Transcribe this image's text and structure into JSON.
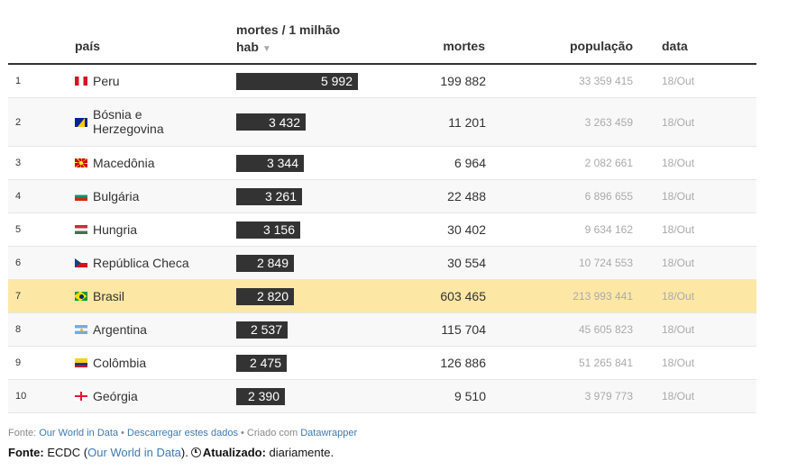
{
  "headers": {
    "country": "país",
    "rate_line1": "mortes / 1 milhão",
    "rate_line2": "hab",
    "sort_icon": "▼",
    "deaths": "mortes",
    "population": "população",
    "date": "data"
  },
  "max_rate": 5992,
  "rows": [
    {
      "rank": "1",
      "country": "Peru",
      "flag": "peru-flag-icon",
      "rate": 5992,
      "rate_label": "5 992",
      "deaths": "199 882",
      "population": "33 359 415",
      "date": "18/Out"
    },
    {
      "rank": "2",
      "country": "Bósnia e Herzegovina",
      "flag": "bosnia-flag-icon",
      "rate": 3432,
      "rate_label": "3 432",
      "deaths": "11 201",
      "population": "3 263 459",
      "date": "18/Out"
    },
    {
      "rank": "3",
      "country": "Macedônia",
      "flag": "macedonia-flag-icon",
      "rate": 3344,
      "rate_label": "3 344",
      "deaths": "6 964",
      "population": "2 082 661",
      "date": "18/Out"
    },
    {
      "rank": "4",
      "country": "Bulgária",
      "flag": "bulgaria-flag-icon",
      "rate": 3261,
      "rate_label": "3 261",
      "deaths": "22 488",
      "population": "6 896 655",
      "date": "18/Out"
    },
    {
      "rank": "5",
      "country": "Hungria",
      "flag": "hungary-flag-icon",
      "rate": 3156,
      "rate_label": "3 156",
      "deaths": "30 402",
      "population": "9 634 162",
      "date": "18/Out"
    },
    {
      "rank": "6",
      "country": "República Checa",
      "flag": "czech-flag-icon",
      "rate": 2849,
      "rate_label": "2 849",
      "deaths": "30 554",
      "population": "10 724 553",
      "date": "18/Out"
    },
    {
      "rank": "7",
      "country": "Brasil",
      "flag": "brazil-flag-icon",
      "rate": 2820,
      "rate_label": "2 820",
      "deaths": "603 465",
      "population": "213 993 441",
      "date": "18/Out",
      "highlight": true
    },
    {
      "rank": "8",
      "country": "Argentina",
      "flag": "argentina-flag-icon",
      "rate": 2537,
      "rate_label": "2 537",
      "deaths": "115 704",
      "population": "45 605 823",
      "date": "18/Out"
    },
    {
      "rank": "9",
      "country": "Colômbia",
      "flag": "colombia-flag-icon",
      "rate": 2475,
      "rate_label": "2 475",
      "deaths": "126 886",
      "population": "51 265 841",
      "date": "18/Out"
    },
    {
      "rank": "10",
      "country": "Geórgia",
      "flag": "georgia-flag-icon",
      "rate": 2390,
      "rate_label": "2 390",
      "deaths": "9 510",
      "population": "3 979 773",
      "date": "18/Out"
    }
  ],
  "footer_line1": {
    "prefix": "Fonte: ",
    "source_link": "Our World in Data",
    "sep1": " • ",
    "download_link": "Descarregar estes dados",
    "sep2": " • Criado com ",
    "tool_link": "Datawrapper"
  },
  "footer_line2": {
    "label": "Fonte:",
    "source_text": " ECDC (",
    "source_link": "Our World in Data",
    "close": ").",
    "updated_label": "Atualizado:",
    "updated_value": " diariamente."
  }
}
